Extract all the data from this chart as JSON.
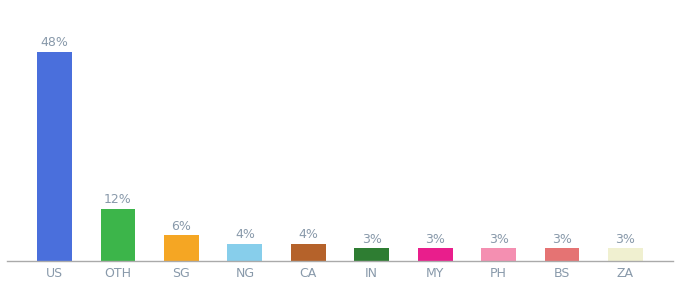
{
  "categories": [
    "US",
    "OTH",
    "SG",
    "NG",
    "CA",
    "IN",
    "MY",
    "PH",
    "BS",
    "ZA"
  ],
  "values": [
    48,
    12,
    6,
    4,
    4,
    3,
    3,
    3,
    3,
    3
  ],
  "labels": [
    "48%",
    "12%",
    "6%",
    "4%",
    "4%",
    "3%",
    "3%",
    "3%",
    "3%",
    "3%"
  ],
  "bar_colors": [
    "#4a6fdc",
    "#3cb54a",
    "#f5a623",
    "#87ceeb",
    "#b5622a",
    "#2e7d32",
    "#e91e8c",
    "#f48fb1",
    "#e57373",
    "#f0f0d0"
  ],
  "background_color": "#ffffff",
  "label_color": "#8899aa",
  "label_fontsize": 9,
  "tick_fontsize": 9,
  "tick_color": "#8899aa",
  "ylim": [
    0,
    55
  ],
  "bar_width": 0.55
}
